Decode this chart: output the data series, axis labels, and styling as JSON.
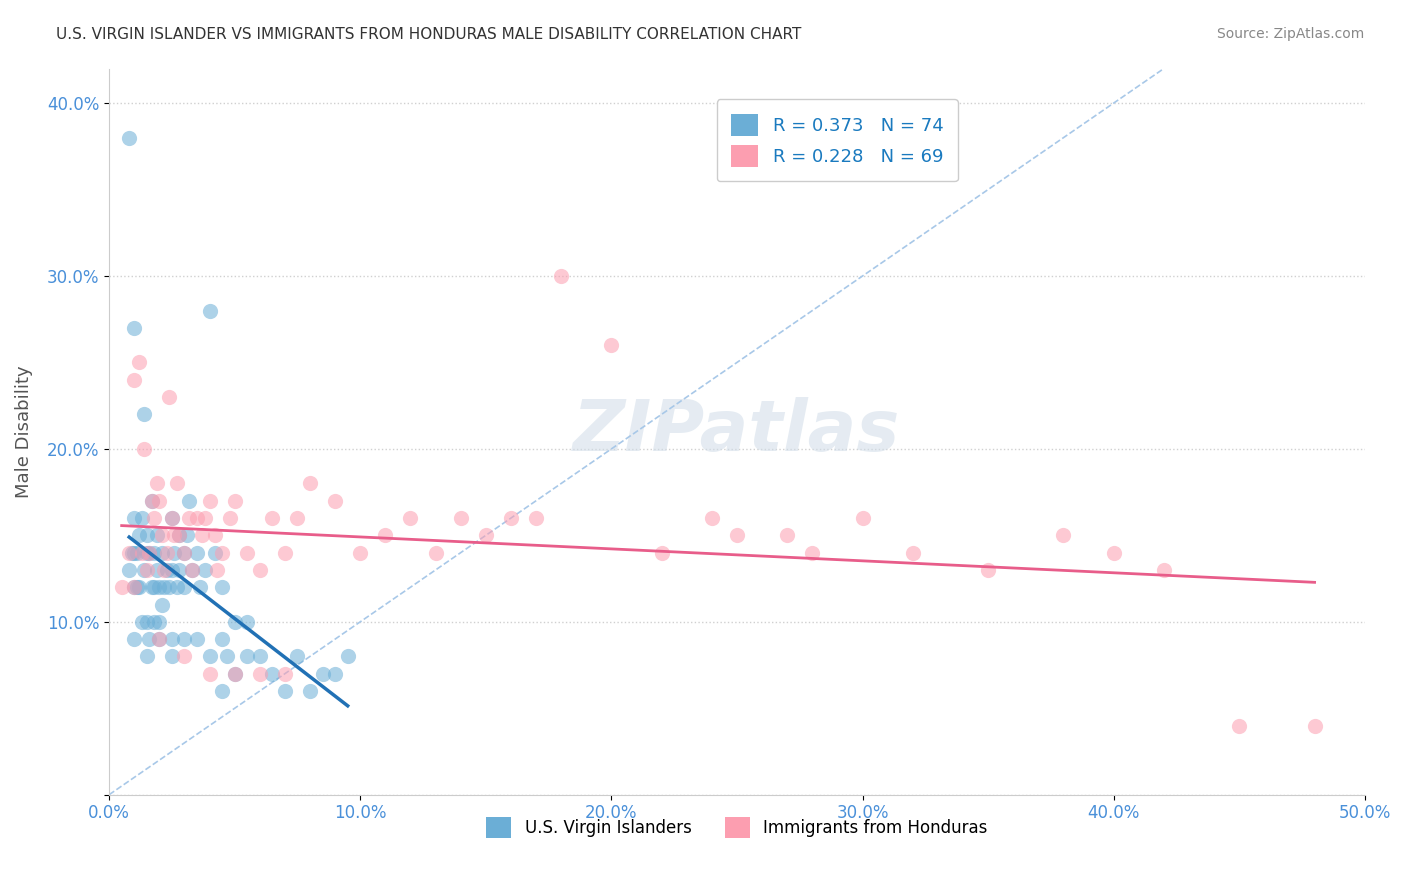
{
  "title": "U.S. VIRGIN ISLANDER VS IMMIGRANTS FROM HONDURAS MALE DISABILITY CORRELATION CHART",
  "source": "Source: ZipAtlas.com",
  "ylabel": "Male Disability",
  "xlabel": "",
  "xlim": [
    0,
    0.5
  ],
  "ylim": [
    0,
    0.42
  ],
  "xticks": [
    0.0,
    0.1,
    0.2,
    0.3,
    0.4,
    0.5
  ],
  "yticks": [
    0.0,
    0.1,
    0.2,
    0.3,
    0.4
  ],
  "xtick_labels": [
    "0.0%",
    "10.0%",
    "20.0%",
    "30.0%",
    "40.0%",
    "50.0%"
  ],
  "ytick_labels": [
    "",
    "10.0%",
    "20.0%",
    "30.0%",
    "40.0%"
  ],
  "legend1_label": "R = 0.373   N = 74",
  "legend2_label": "R = 0.228   N = 69",
  "legend_sub1": "U.S. Virgin Islanders",
  "legend_sub2": "Immigrants from Honduras",
  "color_blue": "#6baed6",
  "color_pink": "#fc9eb0",
  "line_blue": "#2171b5",
  "line_pink": "#e85d8a",
  "line_diag": "#a8c8e8",
  "R_blue": 0.373,
  "N_blue": 74,
  "R_pink": 0.228,
  "N_pink": 69,
  "blue_x": [
    0.008,
    0.008,
    0.009,
    0.01,
    0.01,
    0.01,
    0.011,
    0.011,
    0.012,
    0.012,
    0.013,
    0.013,
    0.014,
    0.014,
    0.015,
    0.015,
    0.016,
    0.016,
    0.017,
    0.017,
    0.018,
    0.018,
    0.018,
    0.019,
    0.019,
    0.02,
    0.021,
    0.021,
    0.022,
    0.023,
    0.024,
    0.025,
    0.025,
    0.026,
    0.027,
    0.028,
    0.028,
    0.03,
    0.031,
    0.032,
    0.033,
    0.035,
    0.036,
    0.038,
    0.04,
    0.042,
    0.045,
    0.045,
    0.047,
    0.05,
    0.055,
    0.06,
    0.065,
    0.07,
    0.075,
    0.08,
    0.085,
    0.09,
    0.095,
    0.01,
    0.015,
    0.02,
    0.025,
    0.03,
    0.035,
    0.04,
    0.045,
    0.05,
    0.055,
    0.03,
    0.02,
    0.01,
    0.015,
    0.025
  ],
  "blue_y": [
    0.13,
    0.38,
    0.14,
    0.14,
    0.16,
    0.27,
    0.12,
    0.14,
    0.12,
    0.15,
    0.1,
    0.16,
    0.13,
    0.22,
    0.14,
    0.15,
    0.09,
    0.14,
    0.12,
    0.17,
    0.1,
    0.12,
    0.14,
    0.13,
    0.15,
    0.12,
    0.11,
    0.14,
    0.12,
    0.13,
    0.12,
    0.13,
    0.16,
    0.14,
    0.12,
    0.13,
    0.15,
    0.14,
    0.15,
    0.17,
    0.13,
    0.14,
    0.12,
    0.13,
    0.28,
    0.14,
    0.06,
    0.12,
    0.08,
    0.07,
    0.1,
    0.08,
    0.07,
    0.06,
    0.08,
    0.06,
    0.07,
    0.07,
    0.08,
    0.12,
    0.1,
    0.09,
    0.08,
    0.09,
    0.09,
    0.08,
    0.09,
    0.1,
    0.08,
    0.12,
    0.1,
    0.09,
    0.08,
    0.09
  ],
  "pink_x": [
    0.005,
    0.008,
    0.01,
    0.012,
    0.013,
    0.014,
    0.015,
    0.016,
    0.017,
    0.018,
    0.019,
    0.02,
    0.021,
    0.022,
    0.023,
    0.024,
    0.025,
    0.026,
    0.027,
    0.028,
    0.03,
    0.032,
    0.033,
    0.035,
    0.037,
    0.038,
    0.04,
    0.042,
    0.043,
    0.045,
    0.048,
    0.05,
    0.055,
    0.06,
    0.065,
    0.07,
    0.075,
    0.08,
    0.09,
    0.1,
    0.11,
    0.12,
    0.13,
    0.14,
    0.15,
    0.16,
    0.17,
    0.18,
    0.2,
    0.22,
    0.24,
    0.25,
    0.27,
    0.28,
    0.3,
    0.32,
    0.35,
    0.38,
    0.4,
    0.42,
    0.45,
    0.01,
    0.02,
    0.03,
    0.04,
    0.05,
    0.06,
    0.07,
    0.48
  ],
  "pink_y": [
    0.12,
    0.14,
    0.24,
    0.25,
    0.14,
    0.2,
    0.13,
    0.14,
    0.17,
    0.16,
    0.18,
    0.17,
    0.15,
    0.13,
    0.14,
    0.23,
    0.16,
    0.15,
    0.18,
    0.15,
    0.14,
    0.16,
    0.13,
    0.16,
    0.15,
    0.16,
    0.17,
    0.15,
    0.13,
    0.14,
    0.16,
    0.17,
    0.14,
    0.13,
    0.16,
    0.14,
    0.16,
    0.18,
    0.17,
    0.14,
    0.15,
    0.16,
    0.14,
    0.16,
    0.15,
    0.16,
    0.16,
    0.3,
    0.26,
    0.14,
    0.16,
    0.15,
    0.15,
    0.14,
    0.16,
    0.14,
    0.13,
    0.15,
    0.14,
    0.13,
    0.04,
    0.12,
    0.09,
    0.08,
    0.07,
    0.07,
    0.07,
    0.07,
    0.04
  ],
  "watermark": "ZIPatlas",
  "background_color": "#ffffff",
  "grid_color": "#d0d0d0"
}
